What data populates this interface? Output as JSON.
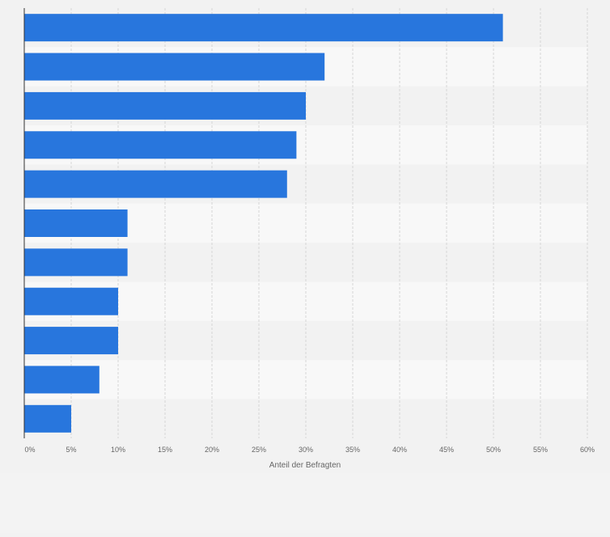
{
  "colors": {
    "bar": "#2876dd",
    "band_light": "#f8f8f8",
    "band_dark": "#f2f2f2",
    "grid": "#d6d6d6",
    "axis": "#333333",
    "tick_text": "#666666",
    "page_bg": "#f2f2f2",
    "footer_bg": "#f3f3f3"
  },
  "chart_data": {
    "type": "bar",
    "orientation": "horizontal",
    "categories": [
      "",
      "",
      "",
      "",
      "",
      "",
      "",
      "",
      "",
      "",
      ""
    ],
    "values": [
      51,
      32,
      30,
      29,
      28,
      11,
      11,
      10,
      10,
      8,
      5
    ],
    "xlabel": "Anteil der Befragten",
    "ylabel": "",
    "xlim": [
      0,
      60
    ],
    "xticks": [
      0,
      5,
      10,
      15,
      20,
      25,
      30,
      35,
      40,
      45,
      50,
      55,
      60
    ],
    "xtick_labels": [
      "0%",
      "5%",
      "10%",
      "15%",
      "20%",
      "25%",
      "30%",
      "35%",
      "40%",
      "45%",
      "50%",
      "55%",
      "60%"
    ],
    "grid": "vertical dashed",
    "legend": "none"
  }
}
